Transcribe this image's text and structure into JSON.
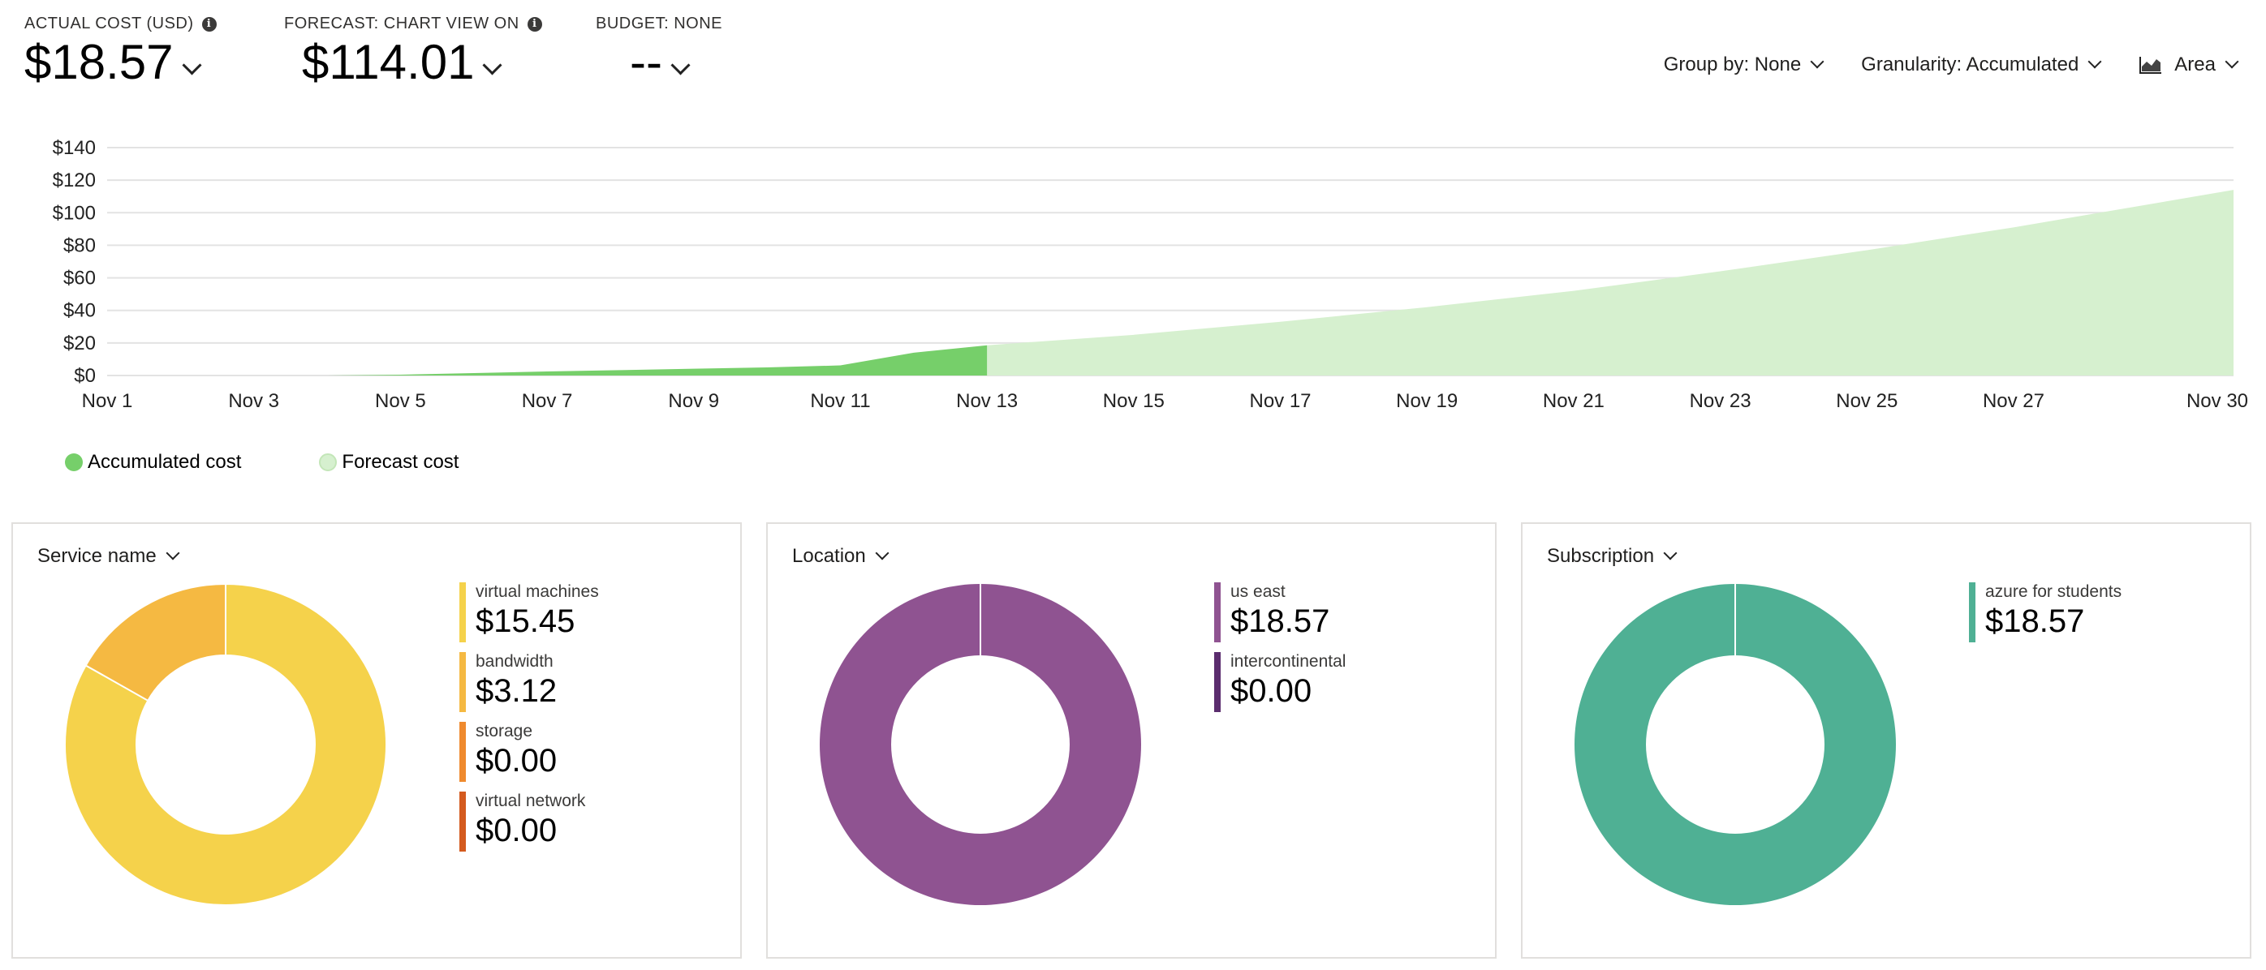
{
  "kpis": {
    "actual": {
      "label": "ACTUAL COST (USD)",
      "value": "$18.57"
    },
    "forecast": {
      "label": "FORECAST: CHART VIEW ON",
      "value": "$114.01"
    },
    "budget": {
      "label": "BUDGET: NONE",
      "value": "--"
    }
  },
  "toolbar": {
    "group_by": "Group by: None",
    "granularity": "Granularity: Accumulated",
    "view": "Area"
  },
  "colors": {
    "accumulated": "#76cf6a",
    "forecast": "#d6f0cf",
    "gridline": "#e3e3e3"
  },
  "chart_data": {
    "type": "area",
    "ylim": [
      0,
      140
    ],
    "yticks": [
      "$0",
      "$20",
      "$40",
      "$60",
      "$80",
      "$100",
      "$120",
      "$140"
    ],
    "ytick_values": [
      0,
      20,
      40,
      60,
      80,
      100,
      120,
      140
    ],
    "xticks": [
      "Nov 1",
      "Nov 3",
      "Nov 5",
      "Nov 7",
      "Nov 9",
      "Nov 11",
      "Nov 13",
      "Nov 15",
      "Nov 17",
      "Nov 19",
      "Nov 21",
      "Nov 23",
      "Nov 25",
      "Nov 27",
      "Nov 30"
    ],
    "xtick_days": [
      1,
      3,
      5,
      7,
      9,
      11,
      13,
      15,
      17,
      19,
      21,
      23,
      25,
      27,
      30
    ],
    "legend_position": "bottom-left",
    "grid": true,
    "series": [
      {
        "name": "Accumulated cost",
        "x": [
          "Nov 4",
          "Nov 5",
          "Nov 6",
          "Nov 7",
          "Nov 8",
          "Nov 9",
          "Nov 10",
          "Nov 11",
          "Nov 12",
          "Nov 13"
        ],
        "days": [
          4,
          5,
          6,
          7,
          8,
          9,
          10,
          11,
          12,
          13
        ],
        "values": [
          0,
          0.5,
          1.5,
          2.5,
          3.3,
          4.2,
          5.0,
          6.2,
          14.0,
          18.57
        ]
      },
      {
        "name": "Forecast cost",
        "x": [
          "Nov 13",
          "Nov 15",
          "Nov 17",
          "Nov 19",
          "Nov 21",
          "Nov 23",
          "Nov 25",
          "Nov 27",
          "Nov 30"
        ],
        "days": [
          13,
          15,
          17,
          19,
          21,
          23,
          25,
          27,
          30
        ],
        "values": [
          18.57,
          25,
          33,
          42,
          52,
          64,
          77,
          91,
          114
        ]
      }
    ]
  },
  "legend": [
    {
      "label": "Accumulated cost"
    },
    {
      "label": "Forecast cost"
    }
  ],
  "cards": [
    {
      "title": "Service name",
      "items": [
        {
          "name": "virtual machines",
          "value": "$15.45",
          "amount": 15.45,
          "color": "#f5d24b"
        },
        {
          "name": "bandwidth",
          "value": "$3.12",
          "amount": 3.12,
          "color": "#f5b942"
        },
        {
          "name": "storage",
          "value": "$0.00",
          "amount": 0,
          "color": "#ef8a2e"
        },
        {
          "name": "virtual network",
          "value": "$0.00",
          "amount": 0,
          "color": "#d45a1e"
        }
      ]
    },
    {
      "title": "Location",
      "items": [
        {
          "name": "us east",
          "value": "$18.57",
          "amount": 18.57,
          "color": "#8f5391"
        },
        {
          "name": "intercontinental",
          "value": "$0.00",
          "amount": 0,
          "color": "#5b2d6e"
        }
      ]
    },
    {
      "title": "Subscription",
      "items": [
        {
          "name": "azure for students",
          "value": "$18.57",
          "amount": 18.57,
          "color": "#4fb094"
        }
      ]
    }
  ]
}
